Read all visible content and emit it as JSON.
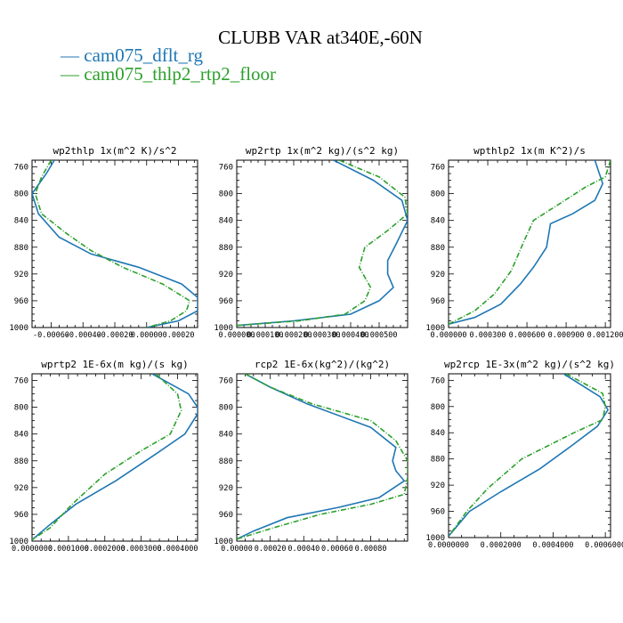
{
  "title": "CLUBB VAR at340E,-60N",
  "legend": [
    {
      "label": "cam075_dflt_rg",
      "color": "#1f77b4"
    },
    {
      "label": "cam075_thlp2_rtp2_floor",
      "color": "#2ca02c"
    }
  ],
  "chart_data": [
    {
      "type": "line",
      "title": "wp2thlp  1x(m^2 K)/s^2",
      "xlim": [
        -0.00072,
        0.00032
      ],
      "ylim": [
        1000,
        750
      ],
      "yticks": [
        760,
        800,
        840,
        880,
        920,
        960,
        1000
      ],
      "xticks": [
        -0.0006,
        -0.0004,
        -0.0002,
        0.0,
        0.0002
      ],
      "xtick_labels": [
        "-0.00060",
        "-0.00040",
        "-0.00020",
        "0.00000",
        "0.00020"
      ],
      "series": [
        {
          "name": "cam075_dflt_rg",
          "points": [
            [
              -0.00058,
              750
            ],
            [
              -0.00063,
              770
            ],
            [
              -0.00072,
              800
            ],
            [
              -0.00068,
              830
            ],
            [
              -0.00055,
              865
            ],
            [
              -0.00035,
              890
            ],
            [
              -5e-05,
              910
            ],
            [
              0.00022,
              935
            ],
            [
              0.00032,
              955
            ],
            [
              0.00032,
              975
            ],
            [
              0.0002,
              990
            ],
            [
              0.0,
              1000
            ]
          ]
        },
        {
          "name": "cam075_thlp2_rtp2_floor",
          "points": [
            [
              -0.0006,
              750
            ],
            [
              -0.00066,
              775
            ],
            [
              -0.0007,
              800
            ],
            [
              -0.00066,
              830
            ],
            [
              -0.0005,
              860
            ],
            [
              -0.00035,
              885
            ],
            [
              -0.00015,
              910
            ],
            [
              0.0001,
              935
            ],
            [
              0.00027,
              960
            ],
            [
              0.00025,
              975
            ],
            [
              0.00015,
              990
            ],
            [
              0.0,
              1000
            ]
          ]
        }
      ]
    },
    {
      "type": "line",
      "title": "wp2rtp  1x(m^2 kg)/(s^2 kg)",
      "xlim": [
        0.0,
        0.0006
      ],
      "ylim": [
        1000,
        750
      ],
      "yticks": [
        760,
        800,
        840,
        880,
        920,
        960,
        1000
      ],
      "xticks": [
        0.0,
        0.0001,
        0.0002,
        0.0003,
        0.0004,
        0.0005
      ],
      "xtick_labels": [
        "0.000000",
        "0.000100",
        "0.000200",
        "0.000300",
        "0.000400",
        "0.000500"
      ],
      "series": [
        {
          "name": "cam075_dflt_rg",
          "points": [
            [
              0.00034,
              750
            ],
            [
              0.00048,
              780
            ],
            [
              0.00058,
              810
            ],
            [
              0.0006,
              840
            ],
            [
              0.00056,
              875
            ],
            [
              0.00053,
              900
            ],
            [
              0.00053,
              920
            ],
            [
              0.00055,
              940
            ],
            [
              0.0005,
              960
            ],
            [
              0.0004,
              980
            ],
            [
              0.0002,
              990
            ],
            [
              0.0,
              997
            ]
          ]
        },
        {
          "name": "cam075_thlp2_rtp2_floor",
          "points": [
            [
              0.00036,
              750
            ],
            [
              0.0005,
              775
            ],
            [
              0.00059,
              805
            ],
            [
              0.0006,
              830
            ],
            [
              0.00053,
              855
            ],
            [
              0.00045,
              880
            ],
            [
              0.00043,
              910
            ],
            [
              0.00047,
              940
            ],
            [
              0.00045,
              960
            ],
            [
              0.00038,
              980
            ],
            [
              0.00022,
              990
            ],
            [
              0.0,
              997
            ]
          ]
        }
      ]
    },
    {
      "type": "line",
      "title": "wpthlp2  1x(m K^2)/s",
      "xlim": [
        0.0,
        0.00124
      ],
      "ylim": [
        1000,
        750
      ],
      "yticks": [
        760,
        800,
        840,
        880,
        920,
        960,
        1000
      ],
      "xticks": [
        0.0,
        0.0003,
        0.0006,
        0.0009,
        0.0012
      ],
      "xtick_labels": [
        "0.000000",
        "0.000300",
        "0.000600",
        "0.000900",
        "0.001200"
      ],
      "series": [
        {
          "name": "cam075_dflt_rg",
          "points": [
            [
              0.00112,
              750
            ],
            [
              0.00118,
              785
            ],
            [
              0.00112,
              810
            ],
            [
              0.00095,
              830
            ],
            [
              0.00078,
              845
            ],
            [
              0.00075,
              880
            ],
            [
              0.00065,
              910
            ],
            [
              0.00055,
              935
            ],
            [
              0.0004,
              965
            ],
            [
              0.0002,
              985
            ],
            [
              0.0,
              995
            ]
          ]
        },
        {
          "name": "cam075_thlp2_rtp2_floor",
          "points": [
            [
              0.00124,
              750
            ],
            [
              0.0012,
              775
            ],
            [
              0.00105,
              790
            ],
            [
              0.00085,
              815
            ],
            [
              0.00065,
              840
            ],
            [
              0.00058,
              870
            ],
            [
              0.00048,
              915
            ],
            [
              0.00035,
              950
            ],
            [
              0.0002,
              975
            ],
            [
              0.0,
              995
            ]
          ]
        }
      ]
    },
    {
      "type": "line",
      "title": "wprtp2  1E-6x(m kg)/(s kg)",
      "xlim": [
        0.0,
        0.000455
      ],
      "ylim": [
        1000,
        750
      ],
      "yticks": [
        760,
        800,
        840,
        880,
        920,
        960,
        1000
      ],
      "xticks": [
        0.0,
        0.0001,
        0.0002,
        0.0003,
        0.0004
      ],
      "xtick_labels": [
        "0.0000000",
        "0.0001000",
        "0.0002000",
        "0.0003000",
        "0.0004000"
      ],
      "series": [
        {
          "name": "cam075_dflt_rg",
          "points": [
            [
              0.00033,
              750
            ],
            [
              0.00043,
              780
            ],
            [
              0.000455,
              800
            ],
            [
              0.000455,
              810
            ],
            [
              0.00042,
              840
            ],
            [
              0.00034,
              870
            ],
            [
              0.00023,
              910
            ],
            [
              0.00012,
              945
            ],
            [
              5e-05,
              975
            ],
            [
              0.0,
              998
            ]
          ]
        },
        {
          "name": "cam075_thlp2_rtp2_floor",
          "points": [
            [
              0.00034,
              750
            ],
            [
              0.0004,
              780
            ],
            [
              0.00041,
              805
            ],
            [
              0.00038,
              840
            ],
            [
              0.0003,
              865
            ],
            [
              0.0002,
              900
            ],
            [
              0.00011,
              945
            ],
            [
              5e-05,
              980
            ],
            [
              0.0,
              998
            ]
          ]
        }
      ]
    },
    {
      "type": "line",
      "title": "rcp2  1E-6x(kg^2)/(kg^2)",
      "xlim": [
        0.0,
        0.00102
      ],
      "ylim": [
        1000,
        750
      ],
      "yticks": [
        760,
        800,
        840,
        880,
        920,
        960,
        1000
      ],
      "xticks": [
        0.0,
        0.0002,
        0.0004,
        0.0006,
        0.0008
      ],
      "xtick_labels": [
        "0.00000",
        "0.00020",
        "0.00040",
        "0.00060",
        "0.00080"
      ],
      "series": [
        {
          "name": "cam075_dflt_rg",
          "points": [
            [
              5e-05,
              750
            ],
            [
              0.0002,
              770
            ],
            [
              0.00042,
              795
            ],
            [
              0.0008,
              830
            ],
            [
              0.00095,
              860
            ],
            [
              0.00093,
              880
            ],
            [
              0.00095,
              895
            ],
            [
              0.001,
              910
            ],
            [
              0.00085,
              935
            ],
            [
              0.0006,
              950
            ],
            [
              0.0003,
              965
            ],
            [
              0.0001,
              985
            ],
            [
              0.0,
              997
            ]
          ]
        },
        {
          "name": "cam075_thlp2_rtp2_floor",
          "points": [
            [
              5e-05,
              750
            ],
            [
              0.0002,
              770
            ],
            [
              0.00045,
              795
            ],
            [
              0.0008,
              820
            ],
            [
              0.00095,
              850
            ],
            [
              0.00102,
              880
            ],
            [
              0.00102,
              905
            ],
            [
              0.001,
              930
            ],
            [
              0.0008,
              945
            ],
            [
              0.0005,
              960
            ],
            [
              0.00022,
              980
            ],
            [
              0.0,
              997
            ]
          ]
        }
      ]
    },
    {
      "type": "line",
      "title": "wp2rcp  1E-3x(m^2 kg)/(s^2 kg)",
      "xlim": [
        0.0,
        0.00062
      ],
      "ylim": [
        1000,
        750
      ],
      "yticks": [
        760,
        800,
        840,
        880,
        920,
        960,
        1000
      ],
      "xticks": [
        0.0,
        0.0002,
        0.0004,
        0.0006
      ],
      "xtick_labels": [
        "0.0000000",
        "0.0002000",
        "0.0004000",
        "0.0006000"
      ],
      "series": [
        {
          "name": "cam075_dflt_rg",
          "points": [
            [
              0.00044,
              750
            ],
            [
              0.00058,
              785
            ],
            [
              0.00061,
              805
            ],
            [
              0.00057,
              830
            ],
            [
              0.00047,
              860
            ],
            [
              0.00035,
              895
            ],
            [
              0.0002,
              930
            ],
            [
              8e-05,
              960
            ],
            [
              0.0,
              998
            ]
          ]
        },
        {
          "name": "cam075_thlp2_rtp2_floor",
          "points": [
            [
              0.00045,
              750
            ],
            [
              0.00059,
              780
            ],
            [
              0.0006,
              800
            ],
            [
              0.00059,
              820
            ],
            [
              0.00048,
              840
            ],
            [
              0.00028,
              880
            ],
            [
              0.00015,
              925
            ],
            [
              7e-05,
              960
            ],
            [
              0.0,
              998
            ]
          ]
        }
      ]
    }
  ]
}
